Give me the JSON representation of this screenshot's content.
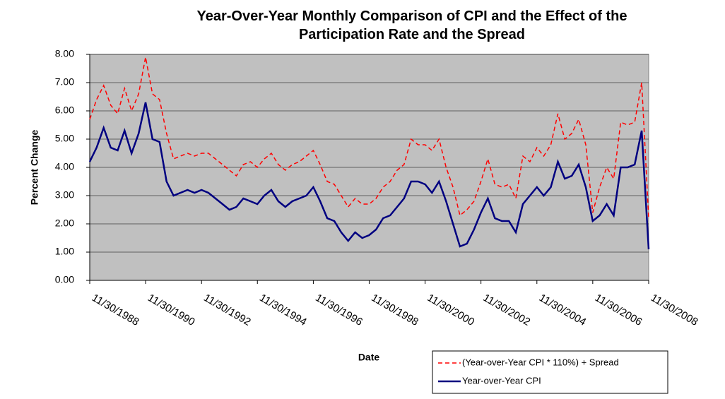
{
  "chart_data": {
    "type": "line",
    "title": "Year-Over-Year Monthly Comparison of CPI and the Effect of the Participation Rate and the Spread",
    "xlabel": "Date",
    "ylabel": "Percent Change",
    "x": [
      "11/30/1988",
      "2/28/1989",
      "5/31/1989",
      "8/31/1989",
      "11/30/1989",
      "2/28/1990",
      "5/31/1990",
      "8/31/1990",
      "11/30/1990",
      "2/28/1991",
      "5/31/1991",
      "8/31/1991",
      "11/30/1991",
      "2/29/1992",
      "5/31/1992",
      "8/31/1992",
      "11/30/1992",
      "2/28/1993",
      "5/31/1993",
      "8/31/1993",
      "11/30/1993",
      "2/28/1994",
      "5/31/1994",
      "8/31/1994",
      "11/30/1994",
      "2/28/1995",
      "5/31/1995",
      "8/31/1995",
      "11/30/1995",
      "2/29/1996",
      "5/31/1996",
      "8/31/1996",
      "11/30/1996",
      "2/28/1997",
      "5/31/1997",
      "8/31/1997",
      "11/30/1997",
      "2/28/1998",
      "5/31/1998",
      "8/31/1998",
      "11/30/1998",
      "2/28/1999",
      "5/31/1999",
      "8/31/1999",
      "11/30/1999",
      "2/29/2000",
      "5/31/2000",
      "8/31/2000",
      "11/30/2000",
      "2/28/2001",
      "5/31/2001",
      "8/31/2001",
      "11/30/2001",
      "2/28/2002",
      "5/31/2002",
      "8/31/2002",
      "11/30/2002",
      "2/28/2003",
      "5/31/2003",
      "8/31/2003",
      "11/30/2003",
      "2/29/2004",
      "5/31/2004",
      "8/31/2004",
      "11/30/2004",
      "2/28/2005",
      "5/31/2005",
      "8/31/2005",
      "11/30/2005",
      "2/28/2006",
      "5/31/2006",
      "8/31/2006",
      "11/30/2006",
      "2/28/2007",
      "5/31/2007",
      "8/31/2007",
      "11/30/2007",
      "2/29/2008",
      "5/31/2008",
      "8/31/2008",
      "11/30/2008"
    ],
    "series": [
      {
        "name": "(Year-over-Year CPI * 110%) + Spread",
        "color": "#ff0000",
        "dashed": true,
        "values": [
          5.7,
          6.4,
          6.9,
          6.2,
          5.9,
          6.8,
          6.0,
          6.6,
          7.9,
          6.6,
          6.4,
          5.2,
          4.3,
          4.4,
          4.5,
          4.4,
          4.5,
          4.5,
          4.3,
          4.1,
          3.9,
          3.7,
          4.1,
          4.2,
          4.0,
          4.3,
          4.5,
          4.1,
          3.9,
          4.1,
          4.2,
          4.4,
          4.6,
          4.1,
          3.5,
          3.4,
          3.0,
          2.6,
          2.9,
          2.7,
          2.7,
          2.9,
          3.3,
          3.5,
          3.9,
          4.1,
          5.0,
          4.8,
          4.8,
          4.6,
          5.0,
          4.0,
          3.3,
          2.3,
          2.5,
          2.8,
          3.5,
          4.3,
          3.4,
          3.3,
          3.4,
          2.9,
          4.4,
          4.2,
          4.7,
          4.4,
          4.8,
          5.9,
          5.0,
          5.2,
          5.7,
          4.8,
          2.4,
          3.3,
          4.0,
          3.6,
          5.6,
          5.5,
          5.6,
          7.0,
          2.2
        ]
      },
      {
        "name": "Year-over-Year CPI",
        "color": "#000080",
        "dashed": false,
        "values": [
          4.2,
          4.7,
          5.4,
          4.7,
          4.6,
          5.3,
          4.5,
          5.2,
          6.3,
          5.0,
          4.9,
          3.5,
          3.0,
          3.1,
          3.2,
          3.1,
          3.2,
          3.1,
          2.9,
          2.7,
          2.5,
          2.6,
          2.9,
          2.8,
          2.7,
          3.0,
          3.2,
          2.8,
          2.6,
          2.8,
          2.9,
          3.0,
          3.3,
          2.8,
          2.2,
          2.1,
          1.7,
          1.4,
          1.7,
          1.5,
          1.6,
          1.8,
          2.2,
          2.3,
          2.6,
          2.9,
          3.5,
          3.5,
          3.4,
          3.1,
          3.5,
          2.8,
          2.0,
          1.2,
          1.3,
          1.8,
          2.4,
          2.9,
          2.2,
          2.1,
          2.1,
          1.7,
          2.7,
          3.0,
          3.3,
          3.0,
          3.3,
          4.2,
          3.6,
          3.7,
          4.1,
          3.3,
          2.1,
          2.3,
          2.7,
          2.3,
          4.0,
          4.0,
          4.1,
          5.3,
          1.1
        ]
      }
    ],
    "xlim": [
      "11/30/1988",
      "11/30/2008"
    ],
    "xticks": [
      "11/30/1988",
      "11/30/1990",
      "11/30/1992",
      "11/30/1994",
      "11/30/1996",
      "11/30/1998",
      "11/30/2000",
      "11/30/2002",
      "11/30/2004",
      "11/30/2006",
      "11/30/2008"
    ],
    "ylim": [
      0,
      8
    ],
    "yticks": [
      {
        "value": 0,
        "label": "0.00"
      },
      {
        "value": 1,
        "label": "1.00"
      },
      {
        "value": 2,
        "label": "2.00"
      },
      {
        "value": 3,
        "label": "3.00"
      },
      {
        "value": 4,
        "label": "4.00"
      },
      {
        "value": 5,
        "label": "5.00"
      },
      {
        "value": 6,
        "label": "6.00"
      },
      {
        "value": 7,
        "label": "7.00"
      },
      {
        "value": 8,
        "label": "8.00"
      }
    ],
    "grid": true,
    "legend": "bottom-right",
    "background": "#c0c0c0"
  }
}
